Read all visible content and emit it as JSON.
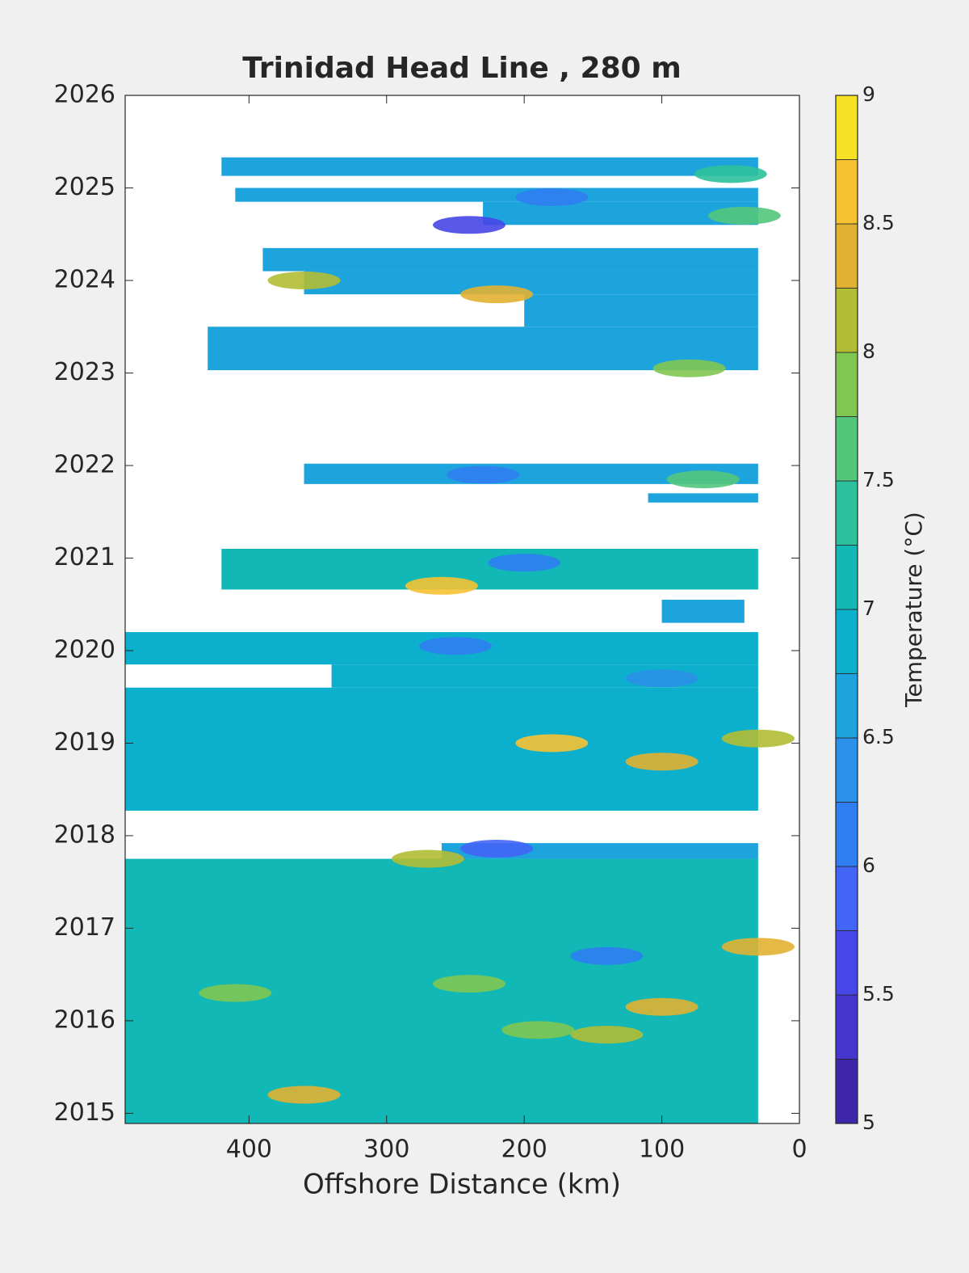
{
  "chart_data": {
    "type": "contour",
    "title": "Trinidad Head Line , 280 m",
    "x_label": "Offshore Distance (km)",
    "colorbar_label": "Temperature (°C)",
    "xlim": [
      490,
      0
    ],
    "xticks": [
      400,
      300,
      200,
      100,
      0
    ],
    "ylim": [
      2014.89,
      2026
    ],
    "yticks": [
      2015,
      2016,
      2017,
      2018,
      2019,
      2020,
      2021,
      2022,
      2023,
      2024,
      2025,
      2026
    ],
    "levels": [
      5,
      5.25,
      5.5,
      5.75,
      6,
      6.25,
      6.5,
      6.75,
      7,
      7.25,
      7.5,
      7.75,
      8,
      8.25,
      8.5,
      8.75,
      9
    ],
    "colors": [
      "#3e26a8",
      "#4634cf",
      "#4647e6",
      "#4265f6",
      "#2f7ef2",
      "#2a90e8",
      "#1ea4dd",
      "#0db0cc",
      "#11b8b5",
      "#2cc19c",
      "#52c77b",
      "#80c652",
      "#b1bd34",
      "#e1b132",
      "#f6c233",
      "#f6e125"
    ],
    "cticks": [
      5,
      5.5,
      6,
      6.5,
      7,
      7.5,
      8,
      8.5,
      9
    ],
    "blocks": [
      {
        "x": [
          420,
          30
        ],
        "y": [
          2025.13,
          2025.33
        ],
        "value": 6.6
      },
      {
        "x": [
          410,
          30
        ],
        "y": [
          2024.85,
          2025.0
        ],
        "value": 6.6
      },
      {
        "x": [
          230,
          30
        ],
        "y": [
          2024.6,
          2024.85
        ],
        "value": 6.6
      },
      {
        "x": [
          390,
          30
        ],
        "y": [
          2024.1,
          2024.35
        ],
        "value": 6.6
      },
      {
        "x": [
          360,
          30
        ],
        "y": [
          2023.85,
          2024.1
        ],
        "value": 6.7
      },
      {
        "x": [
          200,
          30
        ],
        "y": [
          2023.5,
          2023.85
        ],
        "value": 6.7
      },
      {
        "x": [
          430,
          30
        ],
        "y": [
          2023.03,
          2023.5
        ],
        "value": 6.7
      },
      {
        "x": [
          360,
          30
        ],
        "y": [
          2021.8,
          2022.02
        ],
        "value": 6.6
      },
      {
        "x": [
          110,
          30
        ],
        "y": [
          2021.6,
          2021.7
        ],
        "value": 6.5
      },
      {
        "x": [
          420,
          30
        ],
        "y": [
          2020.66,
          2021.1
        ],
        "value": 7.0
      },
      {
        "x": [
          100,
          40
        ],
        "y": [
          2020.3,
          2020.55
        ],
        "value": 6.5
      },
      {
        "x": [
          490,
          30
        ],
        "y": [
          2019.85,
          2020.2
        ],
        "value": 6.9
      },
      {
        "x": [
          340,
          30
        ],
        "y": [
          2019.6,
          2019.85
        ],
        "value": 6.9
      },
      {
        "x": [
          490,
          30
        ],
        "y": [
          2018.27,
          2019.6
        ],
        "value": 6.9
      },
      {
        "x": [
          490,
          30
        ],
        "y": [
          2014.89,
          2017.75
        ],
        "value": 7.0
      },
      {
        "x": [
          260,
          30
        ],
        "y": [
          2017.75,
          2017.92
        ],
        "value": 6.6
      }
    ],
    "features": [
      {
        "x": 360,
        "y": 2024.0,
        "value": 8.2
      },
      {
        "x": 220,
        "y": 2023.85,
        "value": 8.4
      },
      {
        "x": 240,
        "y": 2024.6,
        "value": 5.7
      },
      {
        "x": 180,
        "y": 2024.9,
        "value": 6.1
      },
      {
        "x": 40,
        "y": 2024.7,
        "value": 7.6
      },
      {
        "x": 80,
        "y": 2023.05,
        "value": 7.8
      },
      {
        "x": 260,
        "y": 2020.7,
        "value": 8.5
      },
      {
        "x": 200,
        "y": 2020.95,
        "value": 6.0
      },
      {
        "x": 180,
        "y": 2019.0,
        "value": 8.5
      },
      {
        "x": 100,
        "y": 2018.8,
        "value": 8.4
      },
      {
        "x": 30,
        "y": 2019.05,
        "value": 8.0
      },
      {
        "x": 220,
        "y": 2017.86,
        "value": 5.8
      },
      {
        "x": 270,
        "y": 2017.75,
        "value": 8.0
      },
      {
        "x": 30,
        "y": 2016.8,
        "value": 8.3
      },
      {
        "x": 140,
        "y": 2016.7,
        "value": 6.0
      },
      {
        "x": 100,
        "y": 2016.15,
        "value": 8.3
      },
      {
        "x": 240,
        "y": 2016.4,
        "value": 7.9
      },
      {
        "x": 140,
        "y": 2015.85,
        "value": 8.2
      },
      {
        "x": 190,
        "y": 2015.9,
        "value": 7.9
      },
      {
        "x": 360,
        "y": 2015.2,
        "value": 8.4
      },
      {
        "x": 410,
        "y": 2016.3,
        "value": 7.9
      },
      {
        "x": 70,
        "y": 2021.85,
        "value": 7.6
      },
      {
        "x": 230,
        "y": 2021.9,
        "value": 6.2
      },
      {
        "x": 250,
        "y": 2020.05,
        "value": 6.2
      },
      {
        "x": 100,
        "y": 2019.7,
        "value": 6.3
      },
      {
        "x": 50,
        "y": 2025.15,
        "value": 7.3
      }
    ]
  }
}
